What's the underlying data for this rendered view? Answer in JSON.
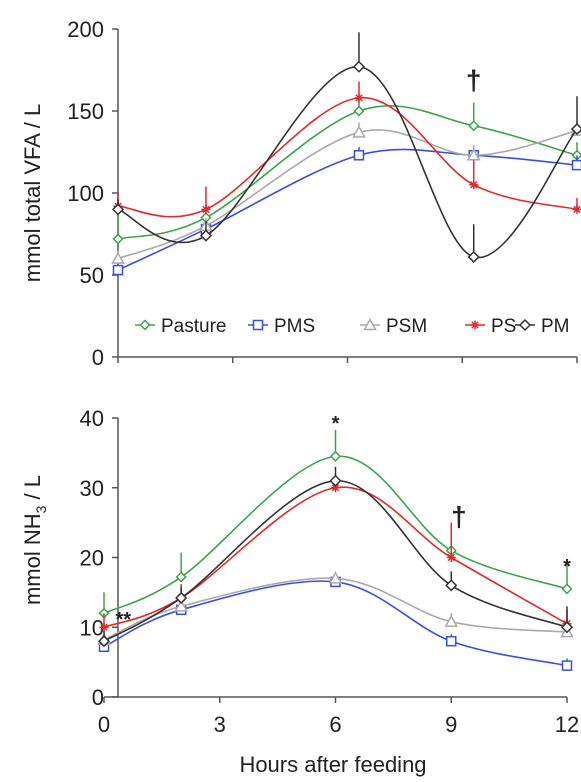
{
  "chart_data": [
    {
      "type": "line",
      "xlabel": "",
      "ylabel": "mmol total VFA / L",
      "xlim": [
        0,
        12
      ],
      "ylim": [
        0,
        200
      ],
      "x": [
        0,
        2.3,
        6.3,
        9.3,
        12
      ],
      "xticks": [
        0,
        3,
        6,
        9,
        12
      ],
      "yticks": [
        0,
        50,
        100,
        150,
        200
      ],
      "grid": false,
      "legend": "bottom, inside plot",
      "annotations": [
        {
          "text": "†",
          "x": 9.3,
          "y": 163
        }
      ],
      "series": [
        {
          "name": "Pasture",
          "color": "#3fa34d",
          "marker": "diamond",
          "values": [
            72,
            85,
            150,
            141,
            123
          ],
          "err": [
            15,
            8,
            9,
            14,
            8
          ]
        },
        {
          "name": "PMS",
          "color": "#3a4ee0",
          "marker": "square",
          "values": [
            53,
            78,
            123,
            123,
            117
          ],
          "err": [
            4,
            4,
            5,
            5,
            6
          ]
        },
        {
          "name": "PSM",
          "color": "#a9a9a9",
          "marker": "triangle",
          "values": [
            60,
            80,
            137,
            123,
            138
          ],
          "err": [
            5,
            5,
            6,
            6,
            6
          ]
        },
        {
          "name": "PS",
          "color": "#e02b2b",
          "marker": "star",
          "values": [
            92,
            90,
            158,
            105,
            90
          ],
          "err": [
            8,
            14,
            10,
            15,
            7
          ]
        },
        {
          "name": "PM",
          "color": "#333333",
          "marker": "diamond-open",
          "values": [
            90,
            74,
            177,
            61,
            139
          ],
          "err": [
            6,
            9,
            21,
            20,
            20
          ]
        }
      ]
    },
    {
      "type": "line",
      "xlabel": "Hours after feeding",
      "ylabel": "mmol NH",
      "ylabel_sub": "3",
      "ylabel_tail": " / L",
      "xlim": [
        0,
        12
      ],
      "ylim": [
        0,
        40
      ],
      "x": [
        0,
        2,
        6,
        9,
        12
      ],
      "xticks": [
        0,
        3,
        6,
        9,
        12
      ],
      "yticks": [
        0,
        10,
        20,
        30,
        40
      ],
      "grid": false,
      "annotations": [
        {
          "text": "**",
          "x": 0.5,
          "y": 10.2
        },
        {
          "text": "*",
          "x": 6,
          "y": 38.3
        },
        {
          "text": "†",
          "x": 9.2,
          "y": 24.5
        },
        {
          "text": "*",
          "x": 12,
          "y": 17.8
        }
      ],
      "series": [
        {
          "name": "Pasture",
          "color": "#3fa34d",
          "marker": "diamond",
          "values": [
            12,
            17.2,
            34.5,
            21,
            15.5
          ],
          "err": [
            3,
            3.5,
            3.8,
            4,
            3.5
          ]
        },
        {
          "name": "PMS",
          "color": "#3a4ee0",
          "marker": "square",
          "values": [
            7.2,
            12.5,
            16.5,
            8,
            4.5
          ],
          "err": [
            1,
            1,
            1,
            1,
            1
          ]
        },
        {
          "name": "PSM",
          "color": "#a9a9a9",
          "marker": "triangle",
          "values": [
            8.2,
            13,
            17,
            10.8,
            9.3
          ],
          "err": [
            1,
            1,
            1,
            1.2,
            1
          ]
        },
        {
          "name": "PS",
          "color": "#e02b2b",
          "marker": "star",
          "values": [
            10,
            14.2,
            30,
            20,
            10.5
          ],
          "err": [
            2,
            2,
            2,
            5,
            2
          ]
        },
        {
          "name": "PM",
          "color": "#333333",
          "marker": "diamond-open",
          "values": [
            8,
            14.2,
            31,
            16,
            10
          ],
          "err": [
            1.5,
            1.5,
            2,
            2,
            3
          ]
        }
      ]
    }
  ]
}
